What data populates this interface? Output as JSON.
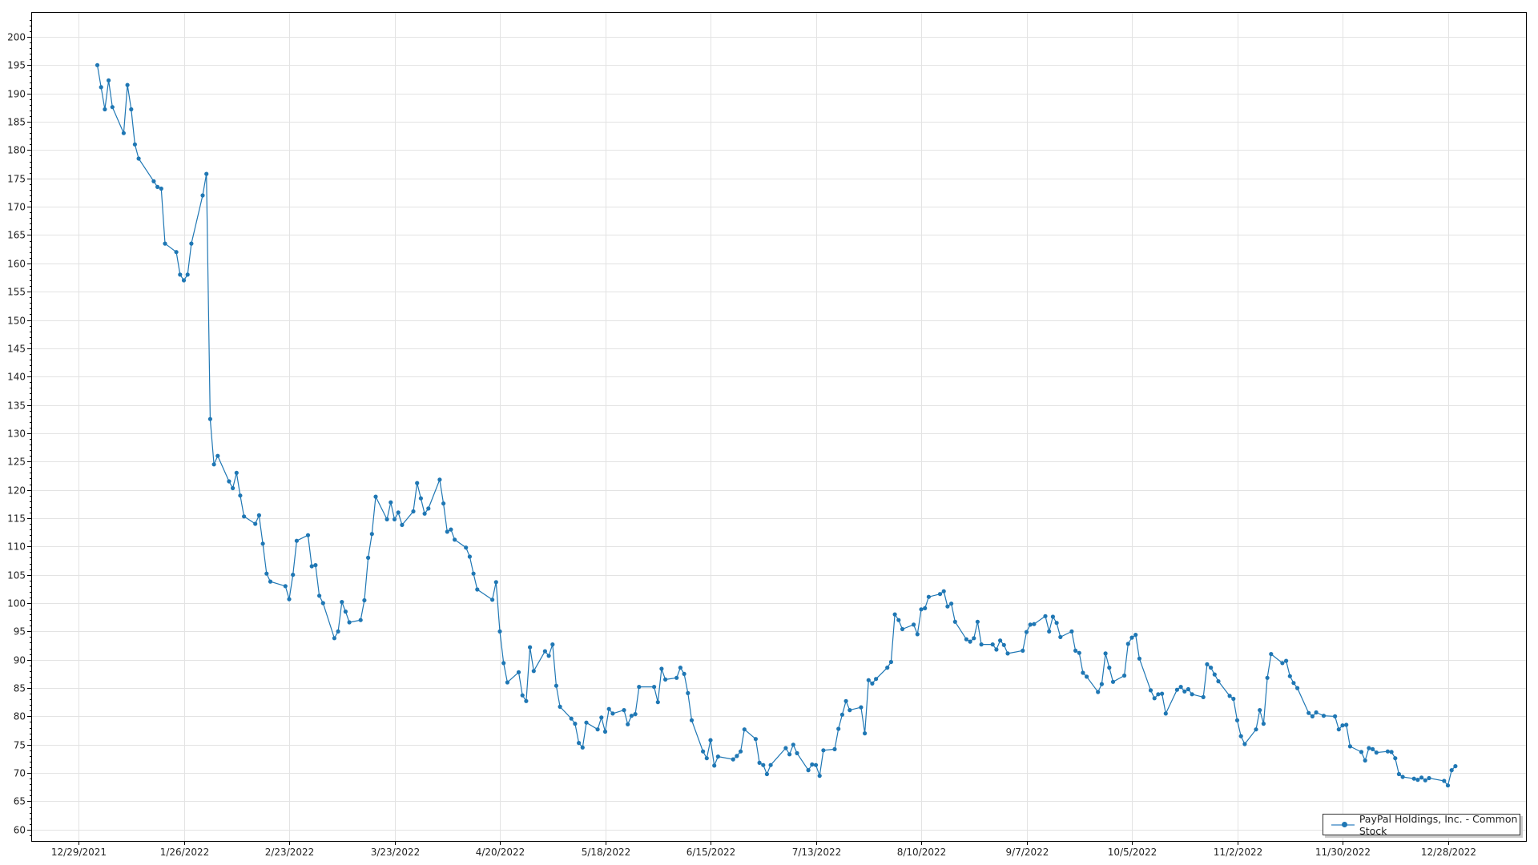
{
  "chart_data": {
    "type": "line",
    "title": "",
    "xlabel": "",
    "ylabel": "",
    "ylim": [
      60,
      200
    ],
    "y_ticks": [
      60,
      65,
      70,
      75,
      80,
      85,
      90,
      95,
      100,
      105,
      110,
      115,
      120,
      125,
      130,
      135,
      140,
      145,
      150,
      155,
      160,
      165,
      170,
      175,
      180,
      185,
      190,
      195,
      200
    ],
    "x_tick_labels": [
      "12/29/2021",
      "1/26/2022",
      "2/23/2022",
      "3/23/2022",
      "4/20/2022",
      "5/18/2022",
      "6/15/2022",
      "7/13/2022",
      "8/10/2022",
      "9/7/2022",
      "10/5/2022",
      "11/2/2022",
      "11/30/2022",
      "12/28/2022"
    ],
    "grid": true,
    "legend_position": "bottom-right",
    "series": [
      {
        "name": "PayPal Holdings, Inc. - Common Stock",
        "color": "#1f77b4",
        "dates": [
          "2022-01-03",
          "2022-01-04",
          "2022-01-05",
          "2022-01-06",
          "2022-01-07",
          "2022-01-10",
          "2022-01-11",
          "2022-01-12",
          "2022-01-13",
          "2022-01-14",
          "2022-01-18",
          "2022-01-19",
          "2022-01-20",
          "2022-01-21",
          "2022-01-24",
          "2022-01-25",
          "2022-01-26",
          "2022-01-27",
          "2022-01-28",
          "2022-01-31",
          "2022-02-01",
          "2022-02-02",
          "2022-02-03",
          "2022-02-04",
          "2022-02-07",
          "2022-02-08",
          "2022-02-09",
          "2022-02-10",
          "2022-02-11",
          "2022-02-14",
          "2022-02-15",
          "2022-02-16",
          "2022-02-17",
          "2022-02-18",
          "2022-02-22",
          "2022-02-23",
          "2022-02-24",
          "2022-02-25",
          "2022-02-28",
          "2022-03-01",
          "2022-03-02",
          "2022-03-03",
          "2022-03-04",
          "2022-03-07",
          "2022-03-08",
          "2022-03-09",
          "2022-03-10",
          "2022-03-11",
          "2022-03-14",
          "2022-03-15",
          "2022-03-16",
          "2022-03-17",
          "2022-03-18",
          "2022-03-21",
          "2022-03-22",
          "2022-03-23",
          "2022-03-24",
          "2022-03-25",
          "2022-03-28",
          "2022-03-29",
          "2022-03-30",
          "2022-03-31",
          "2022-04-01",
          "2022-04-04",
          "2022-04-05",
          "2022-04-06",
          "2022-04-07",
          "2022-04-08",
          "2022-04-11",
          "2022-04-12",
          "2022-04-13",
          "2022-04-14",
          "2022-04-18",
          "2022-04-19",
          "2022-04-20",
          "2022-04-21",
          "2022-04-22",
          "2022-04-25",
          "2022-04-26",
          "2022-04-27",
          "2022-04-28",
          "2022-04-29",
          "2022-05-02",
          "2022-05-03",
          "2022-05-04",
          "2022-05-05",
          "2022-05-06",
          "2022-05-09",
          "2022-05-10",
          "2022-05-11",
          "2022-05-12",
          "2022-05-13",
          "2022-05-16",
          "2022-05-17",
          "2022-05-18",
          "2022-05-19",
          "2022-05-20",
          "2022-05-23",
          "2022-05-24",
          "2022-05-25",
          "2022-05-26",
          "2022-05-27",
          "2022-05-31",
          "2022-06-01",
          "2022-06-02",
          "2022-06-03",
          "2022-06-06",
          "2022-06-07",
          "2022-06-08",
          "2022-06-09",
          "2022-06-10",
          "2022-06-13",
          "2022-06-14",
          "2022-06-15",
          "2022-06-16",
          "2022-06-17",
          "2022-06-21",
          "2022-06-22",
          "2022-06-23",
          "2022-06-24",
          "2022-06-27",
          "2022-06-28",
          "2022-06-29",
          "2022-06-30",
          "2022-07-01",
          "2022-07-05",
          "2022-07-06",
          "2022-07-07",
          "2022-07-08",
          "2022-07-11",
          "2022-07-12",
          "2022-07-13",
          "2022-07-14",
          "2022-07-15",
          "2022-07-18",
          "2022-07-19",
          "2022-07-20",
          "2022-07-21",
          "2022-07-22",
          "2022-07-25",
          "2022-07-26",
          "2022-07-27",
          "2022-07-28",
          "2022-07-29",
          "2022-08-01",
          "2022-08-02",
          "2022-08-03",
          "2022-08-04",
          "2022-08-05",
          "2022-08-08",
          "2022-08-09",
          "2022-08-10",
          "2022-08-11",
          "2022-08-12",
          "2022-08-15",
          "2022-08-16",
          "2022-08-17",
          "2022-08-18",
          "2022-08-19",
          "2022-08-22",
          "2022-08-23",
          "2022-08-24",
          "2022-08-25",
          "2022-08-26",
          "2022-08-29",
          "2022-08-30",
          "2022-08-31",
          "2022-09-01",
          "2022-09-02",
          "2022-09-06",
          "2022-09-07",
          "2022-09-08",
          "2022-09-09",
          "2022-09-12",
          "2022-09-13",
          "2022-09-14",
          "2022-09-15",
          "2022-09-16",
          "2022-09-19",
          "2022-09-20",
          "2022-09-21",
          "2022-09-22",
          "2022-09-23",
          "2022-09-26",
          "2022-09-27",
          "2022-09-28",
          "2022-09-29",
          "2022-09-30",
          "2022-10-03",
          "2022-10-04",
          "2022-10-05",
          "2022-10-06",
          "2022-10-07",
          "2022-10-10",
          "2022-10-11",
          "2022-10-12",
          "2022-10-13",
          "2022-10-14",
          "2022-10-17",
          "2022-10-18",
          "2022-10-19",
          "2022-10-20",
          "2022-10-21",
          "2022-10-24",
          "2022-10-25",
          "2022-10-26",
          "2022-10-27",
          "2022-10-28",
          "2022-10-31",
          "2022-11-01",
          "2022-11-02",
          "2022-11-03",
          "2022-11-04",
          "2022-11-07",
          "2022-11-08",
          "2022-11-09",
          "2022-11-10",
          "2022-11-11",
          "2022-11-14",
          "2022-11-15",
          "2022-11-16",
          "2022-11-17",
          "2022-11-18",
          "2022-11-21",
          "2022-11-22",
          "2022-11-23",
          "2022-11-25",
          "2022-11-28",
          "2022-11-29",
          "2022-11-30",
          "2022-12-01",
          "2022-12-02",
          "2022-12-05",
          "2022-12-06",
          "2022-12-07",
          "2022-12-08",
          "2022-12-09",
          "2022-12-12",
          "2022-12-13",
          "2022-12-14",
          "2022-12-15",
          "2022-12-16",
          "2022-12-19",
          "2022-12-20",
          "2022-12-21",
          "2022-12-22",
          "2022-12-23",
          "2022-12-27",
          "2022-12-28",
          "2022-12-29",
          "2022-12-30"
        ],
        "values": [
          195.0,
          191.1,
          187.2,
          192.3,
          187.6,
          183.0,
          191.5,
          187.2,
          181.0,
          178.5,
          174.5,
          173.5,
          173.2,
          163.5,
          162.0,
          158.0,
          157.0,
          158.0,
          163.5,
          172.0,
          175.8,
          132.5,
          124.5,
          126.0,
          121.5,
          120.3,
          123.0,
          119.0,
          115.3,
          114.0,
          115.5,
          110.5,
          105.2,
          103.8,
          103.0,
          100.7,
          105.0,
          111.0,
          112.0,
          106.5,
          106.7,
          101.3,
          100.0,
          93.8,
          95.0,
          100.2,
          98.5,
          96.6,
          97.0,
          100.5,
          108.0,
          112.2,
          118.8,
          114.8,
          117.8,
          114.8,
          116.0,
          113.8,
          116.2,
          121.2,
          118.5,
          115.8,
          116.7,
          121.8,
          117.6,
          112.6,
          113.0,
          111.2,
          109.8,
          108.2,
          105.2,
          102.4,
          100.6,
          103.7,
          95.0,
          89.4,
          86.0,
          87.8,
          83.7,
          82.7,
          92.2,
          88.0,
          91.5,
          90.7,
          92.7,
          85.4,
          81.7,
          79.6,
          78.7,
          75.3,
          74.5,
          78.9,
          77.7,
          79.8,
          77.3,
          81.3,
          80.5,
          81.1,
          78.6,
          80.1,
          80.4,
          85.2,
          85.2,
          82.5,
          88.4,
          86.5,
          86.8,
          88.6,
          87.5,
          84.1,
          79.3,
          73.8,
          72.6,
          75.8,
          71.3,
          72.9,
          72.4,
          73.0,
          73.8,
          77.7,
          76.0,
          71.8,
          71.4,
          69.8,
          71.4,
          74.4,
          73.3,
          75.0,
          73.5,
          70.5,
          71.5,
          71.4,
          69.5,
          74.0,
          74.2,
          77.8,
          80.3,
          82.7,
          81.1,
          81.6,
          77.0,
          86.4,
          85.8,
          86.6,
          88.6,
          89.6,
          98.0,
          97.0,
          95.4,
          96.2,
          94.5,
          98.9,
          99.1,
          101.1,
          101.6,
          102.1,
          99.4,
          99.9,
          96.7,
          93.6,
          93.2,
          93.8,
          96.7,
          92.7,
          92.7,
          91.8,
          93.4,
          92.6,
          91.1,
          91.6,
          94.9,
          96.2,
          96.3,
          97.7,
          95.0,
          97.6,
          96.5,
          94.0,
          95.0,
          91.6,
          91.2,
          87.7,
          87.0,
          84.3,
          85.7,
          91.1,
          88.6,
          86.1,
          87.2,
          92.8,
          93.9,
          94.4,
          90.2,
          84.6,
          83.2,
          83.9,
          84.0,
          80.5,
          84.7,
          85.2,
          84.4,
          84.8,
          83.9,
          83.4,
          89.2,
          88.6,
          87.4,
          86.2,
          83.6,
          83.1,
          79.3,
          76.5,
          75.1,
          77.7,
          81.1,
          78.7,
          86.8,
          91.0,
          89.4,
          89.8,
          87.1,
          85.9,
          85.0,
          80.6,
          80.0,
          80.7,
          80.1,
          80.0,
          77.7,
          78.4,
          78.5,
          74.7,
          73.7,
          72.2,
          74.4,
          74.2,
          73.6,
          73.8,
          73.7,
          72.6,
          69.8,
          69.3,
          69.0,
          68.8,
          69.2,
          68.7,
          69.1,
          68.6,
          67.8,
          70.5,
          71.2
        ]
      }
    ]
  }
}
